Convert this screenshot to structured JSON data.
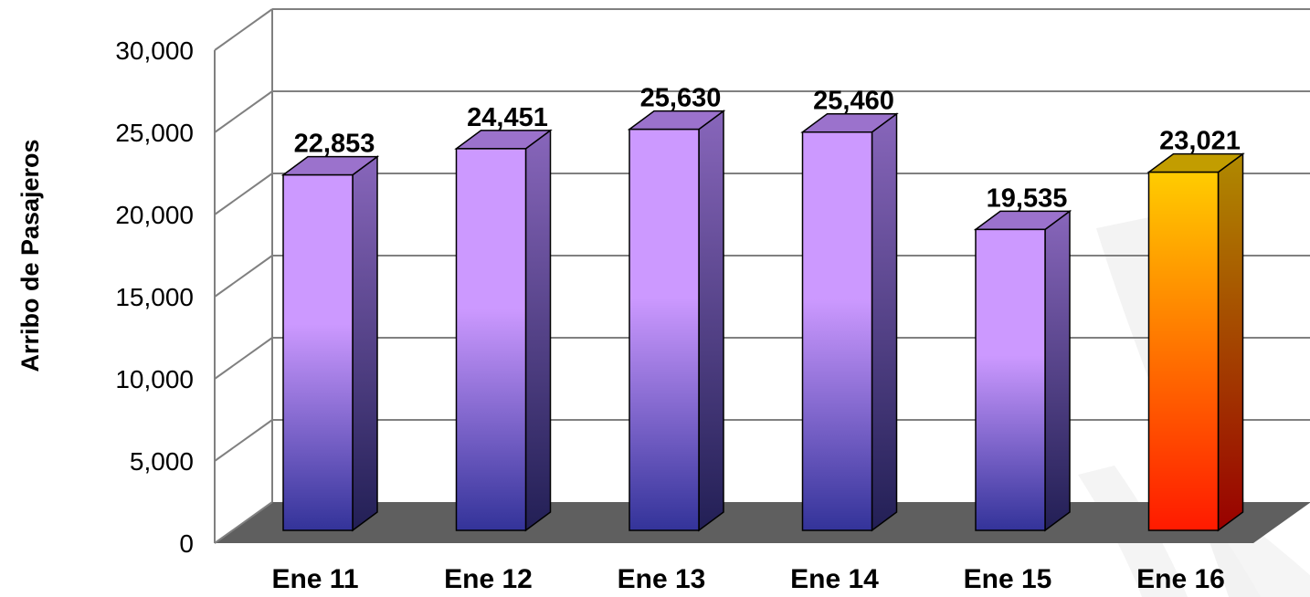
{
  "chart_data": {
    "type": "bar",
    "style": "3d-column",
    "ylabel": "Arribo de Pasajeros",
    "xlabel": "",
    "ylim": [
      0,
      30000
    ],
    "yticks": [
      "0",
      "5,000",
      "10,000",
      "15,000",
      "20,000",
      "25,000",
      "30,000"
    ],
    "ytick_values": [
      0,
      5000,
      10000,
      15000,
      20000,
      25000,
      30000
    ],
    "categories": [
      "Ene 11",
      "Ene 12",
      "Ene 13",
      "Ene 14",
      "Ene 15",
      "Ene 16"
    ],
    "values": [
      22853,
      24451,
      25630,
      25460,
      19535,
      23021
    ],
    "value_labels": [
      "22,853",
      "24,451",
      "25,630",
      "25,460",
      "19,535",
      "23,021"
    ],
    "highlight_index": 5,
    "colors": {
      "bar_front_top": "#cc99ff",
      "bar_front_bottom": "#333399",
      "bar_side_top": "#8866bb",
      "bar_side_bottom": "#221f55",
      "bar_top": "#9b72cc",
      "highlight_front_top": "#ffcc00",
      "highlight_front_bottom": "#ff1a00",
      "highlight_side_top": "#b08a00",
      "highlight_side_bottom": "#990000",
      "highlight_top": "#c29d00",
      "floor": "#5f5f5f",
      "grid": "#808080"
    },
    "grid": true,
    "legend": "none"
  }
}
